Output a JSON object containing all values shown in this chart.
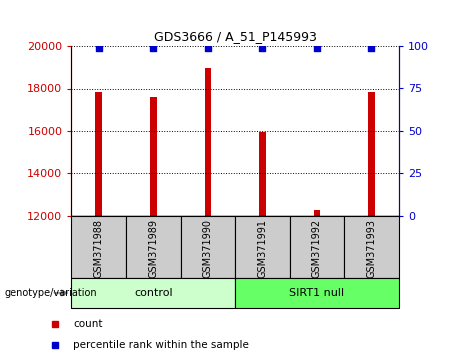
{
  "title": "GDS3666 / A_51_P145993",
  "samples": [
    "GSM371988",
    "GSM371989",
    "GSM371990",
    "GSM371991",
    "GSM371992",
    "GSM371993"
  ],
  "counts": [
    17850,
    17600,
    18950,
    15950,
    12300,
    17850
  ],
  "percentile_ranks": [
    99,
    99,
    99,
    99,
    99,
    99
  ],
  "ylim_left": [
    12000,
    20000
  ],
  "ylim_right": [
    0,
    100
  ],
  "yticks_left": [
    12000,
    14000,
    16000,
    18000,
    20000
  ],
  "yticks_right": [
    0,
    25,
    50,
    75,
    100
  ],
  "bar_color": "#cc0000",
  "dot_color": "#0000cc",
  "control_label": "control",
  "sirt1_label": "SIRT1 null",
  "genotype_label": "genotype/variation",
  "legend_count_label": "count",
  "legend_pct_label": "percentile rank within the sample",
  "control_bg": "#ccffcc",
  "sirt1_bg": "#66ff66",
  "sample_box_bg": "#cccccc",
  "bar_width": 0.12
}
